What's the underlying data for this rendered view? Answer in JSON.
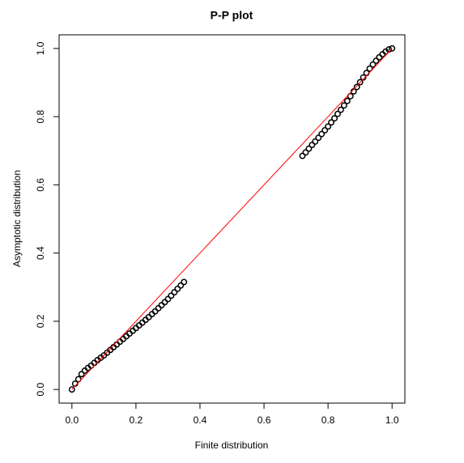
{
  "chart_data": {
    "type": "scatter",
    "title": "P-P plot",
    "xlabel": "Finite distribution",
    "ylabel": "Asymptotic distribution",
    "xlim": [
      -0.04,
      1.04
    ],
    "ylim": [
      -0.04,
      1.04
    ],
    "xticks": [
      {
        "value": 0,
        "label": "0.0"
      },
      0.2,
      0.4,
      0.6,
      0.8,
      {
        "value": 1,
        "label": "1.0"
      }
    ],
    "yticks": [
      {
        "value": 0,
        "label": "0.0"
      },
      0.2,
      0.4,
      0.6,
      0.8,
      {
        "value": 1,
        "label": "1.0"
      }
    ],
    "series": [
      {
        "color": "#000000",
        "x": [
          0,
          0.01,
          0.02,
          0.03,
          0.04,
          0.05,
          0.06,
          0.07,
          0.08,
          0.09,
          0.1,
          0.11,
          0.12,
          0.13,
          0.14,
          0.15,
          0.16,
          0.17,
          0.18,
          0.19,
          0.2,
          0.21,
          0.22,
          0.23,
          0.24,
          0.25,
          0.26,
          0.27,
          0.28,
          0.29,
          0.3,
          0.31,
          0.32,
          0.33,
          0.34,
          0.35,
          0.72,
          0.73,
          0.74,
          0.75,
          0.76,
          0.77,
          0.78,
          0.79,
          0.8,
          0.81,
          0.82,
          0.83,
          0.84,
          0.85,
          0.86,
          0.87,
          0.88,
          0.89,
          0.9,
          0.91,
          0.92,
          0.93,
          0.94,
          0.95,
          0.96,
          0.97,
          0.98,
          0.99,
          1.0
        ],
        "values": [
          0,
          0.017,
          0.03,
          0.045,
          0.055,
          0.063,
          0.07,
          0.078,
          0.086,
          0.093,
          0.1,
          0.108,
          0.116,
          0.124,
          0.132,
          0.14,
          0.148,
          0.156,
          0.164,
          0.172,
          0.18,
          0.188,
          0.196,
          0.204,
          0.212,
          0.221,
          0.229,
          0.238,
          0.247,
          0.256,
          0.265,
          0.275,
          0.285,
          0.295,
          0.305,
          0.315,
          0.685,
          0.695,
          0.706,
          0.717,
          0.727,
          0.738,
          0.749,
          0.76,
          0.771,
          0.783,
          0.795,
          0.808,
          0.82,
          0.833,
          0.846,
          0.86,
          0.874,
          0.887,
          0.901,
          0.915,
          0.928,
          0.941,
          0.953,
          0.964,
          0.974,
          0.983,
          0.991,
          0.997,
          1.0
        ]
      }
    ],
    "line": {
      "x": [
        0,
        1
      ],
      "y": [
        0,
        1
      ],
      "color": "#ff0000"
    }
  }
}
